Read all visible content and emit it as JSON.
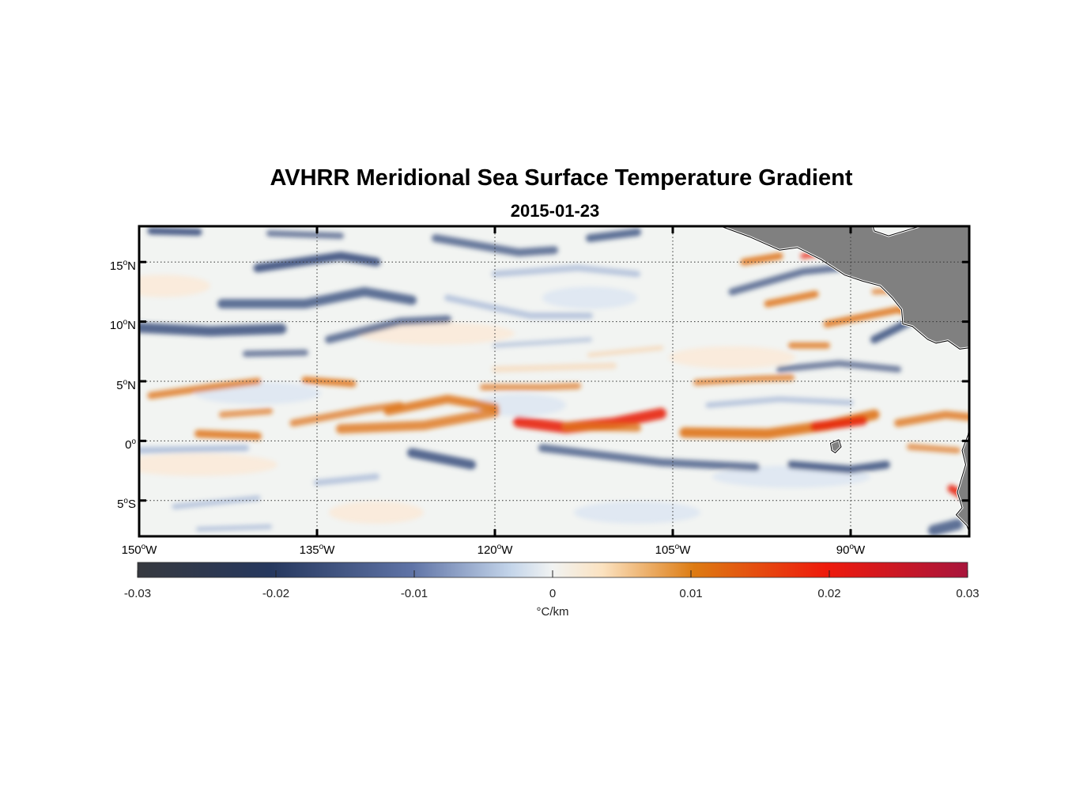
{
  "figure": {
    "title": "AVHRR Meridional Sea Surface Temperature Gradient",
    "subtitle": "2015-01-23"
  },
  "map": {
    "lon_range": [
      -150,
      -80
    ],
    "lat_range": [
      -8,
      18
    ],
    "lon_ticks": [
      {
        "deg": "150",
        "hemi": "W"
      },
      {
        "deg": "135",
        "hemi": "W"
      },
      {
        "deg": "120",
        "hemi": "W"
      },
      {
        "deg": "105",
        "hemi": "W"
      },
      {
        "deg": "90",
        "hemi": "W"
      }
    ],
    "lon_tick_values": [
      -150,
      -135,
      -120,
      -105,
      -90
    ],
    "lat_ticks": [
      {
        "deg": "15",
        "hemi": "N"
      },
      {
        "deg": "10",
        "hemi": "N"
      },
      {
        "deg": "5",
        "hemi": "N"
      },
      {
        "deg": "0",
        "hemi": ""
      },
      {
        "deg": "5",
        "hemi": "S"
      }
    ],
    "lat_tick_values": [
      15,
      10,
      5,
      0,
      -5
    ],
    "land_color": "#808080",
    "grid": "dotted"
  },
  "colorbar": {
    "min": -0.03,
    "max": 0.03,
    "tick_labels": [
      "-0.03",
      "-0.02",
      "-0.01",
      "0",
      "0.01",
      "0.02",
      "0.03"
    ],
    "tick_values": [
      -0.03,
      -0.02,
      -0.01,
      0,
      0.01,
      0.02,
      0.03
    ],
    "label": "°C/km",
    "colors": [
      "#36393f",
      "#2a3d66",
      "#7a8cb8",
      "#e8eef4",
      "#fbe3c2",
      "#e07a10",
      "#e01b10",
      "#a8163a"
    ]
  }
}
